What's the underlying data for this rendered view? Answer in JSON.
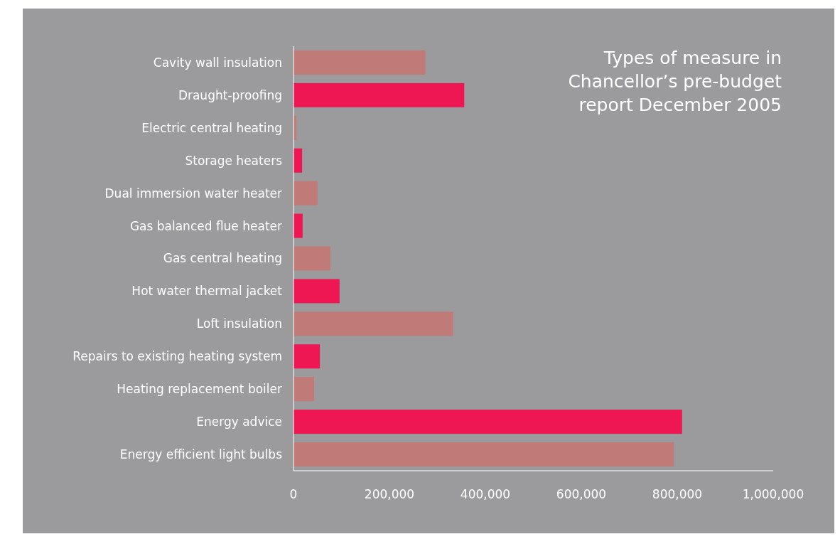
{
  "chart_data": {
    "type": "bar",
    "orientation": "horizontal",
    "title": "Types of measure in Chancellor’s pre-budget report December 2005",
    "categories": [
      "Cavity wall insulation",
      "Draught-proofing",
      "Electric central heating",
      "Storage heaters",
      "Dual immersion water heater",
      "Gas balanced flue heater",
      "Gas central heating",
      "Hot water thermal jacket",
      "Loft insulation",
      "Repairs to existing heating system",
      "Heating replacement boiler",
      "Energy advice",
      "Energy efficient light bulbs"
    ],
    "values": [
      275000,
      356000,
      6000,
      18000,
      50000,
      19000,
      77000,
      96000,
      333000,
      55000,
      43000,
      810000,
      793000
    ],
    "colors": [
      "#c07a78",
      "#ee1653",
      "#c07a78",
      "#ee1653",
      "#c07a78",
      "#ee1653",
      "#c07a78",
      "#ee1653",
      "#c07a78",
      "#ee1653",
      "#c07a78",
      "#ee1653",
      "#c07a78"
    ],
    "xlim": [
      0,
      1000000
    ],
    "xticks": [
      0,
      {
        "value": 200000,
        "label": "200,000"
      },
      {
        "value": 400000,
        "label": "400,000"
      },
      {
        "value": 600000,
        "label": "600,000"
      },
      {
        "value": 800000,
        "label": "800,000"
      },
      {
        "value": 1000000,
        "label": "1,000,000"
      }
    ],
    "grid": false
  }
}
